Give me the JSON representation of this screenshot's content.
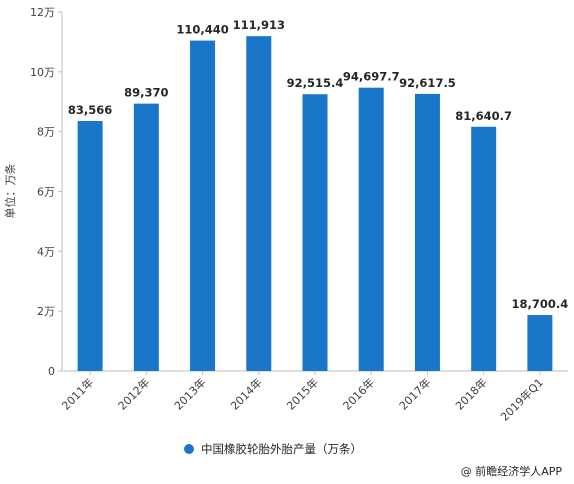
{
  "chart_data": {
    "type": "bar",
    "categories": [
      "2011年",
      "2012年",
      "2013年",
      "2014年",
      "2015年",
      "2016年",
      "2017年",
      "2018年",
      "2019年Q1"
    ],
    "series": [
      {
        "name": "中国橡胶轮胎外胎产量（万条）",
        "values": [
          83566,
          89370,
          110440,
          111913,
          92515.4,
          94697.7,
          92617.5,
          81640.7,
          18700.4
        ],
        "labels": [
          "83,566",
          "89,370",
          "110,440",
          "111,913",
          "92,515.4",
          "94,697.7",
          "92,617.5",
          "81,640.7",
          "18,700.4"
        ]
      }
    ],
    "ylabel": "单位：万条",
    "ylim": [
      0,
      120000
    ],
    "yticks": [
      0,
      20000,
      40000,
      60000,
      80000,
      100000,
      120000
    ],
    "ytick_labels": [
      "0",
      "2万",
      "4万",
      "6万",
      "8万",
      "10万",
      "12万"
    ],
    "grid": false,
    "legend_position": "bottom",
    "bar_color": "#1a76c8"
  },
  "legend": {
    "label": "中国橡胶轮胎外胎产量（万条）"
  },
  "source": {
    "text": "@ 前瞻经济学人APP"
  }
}
